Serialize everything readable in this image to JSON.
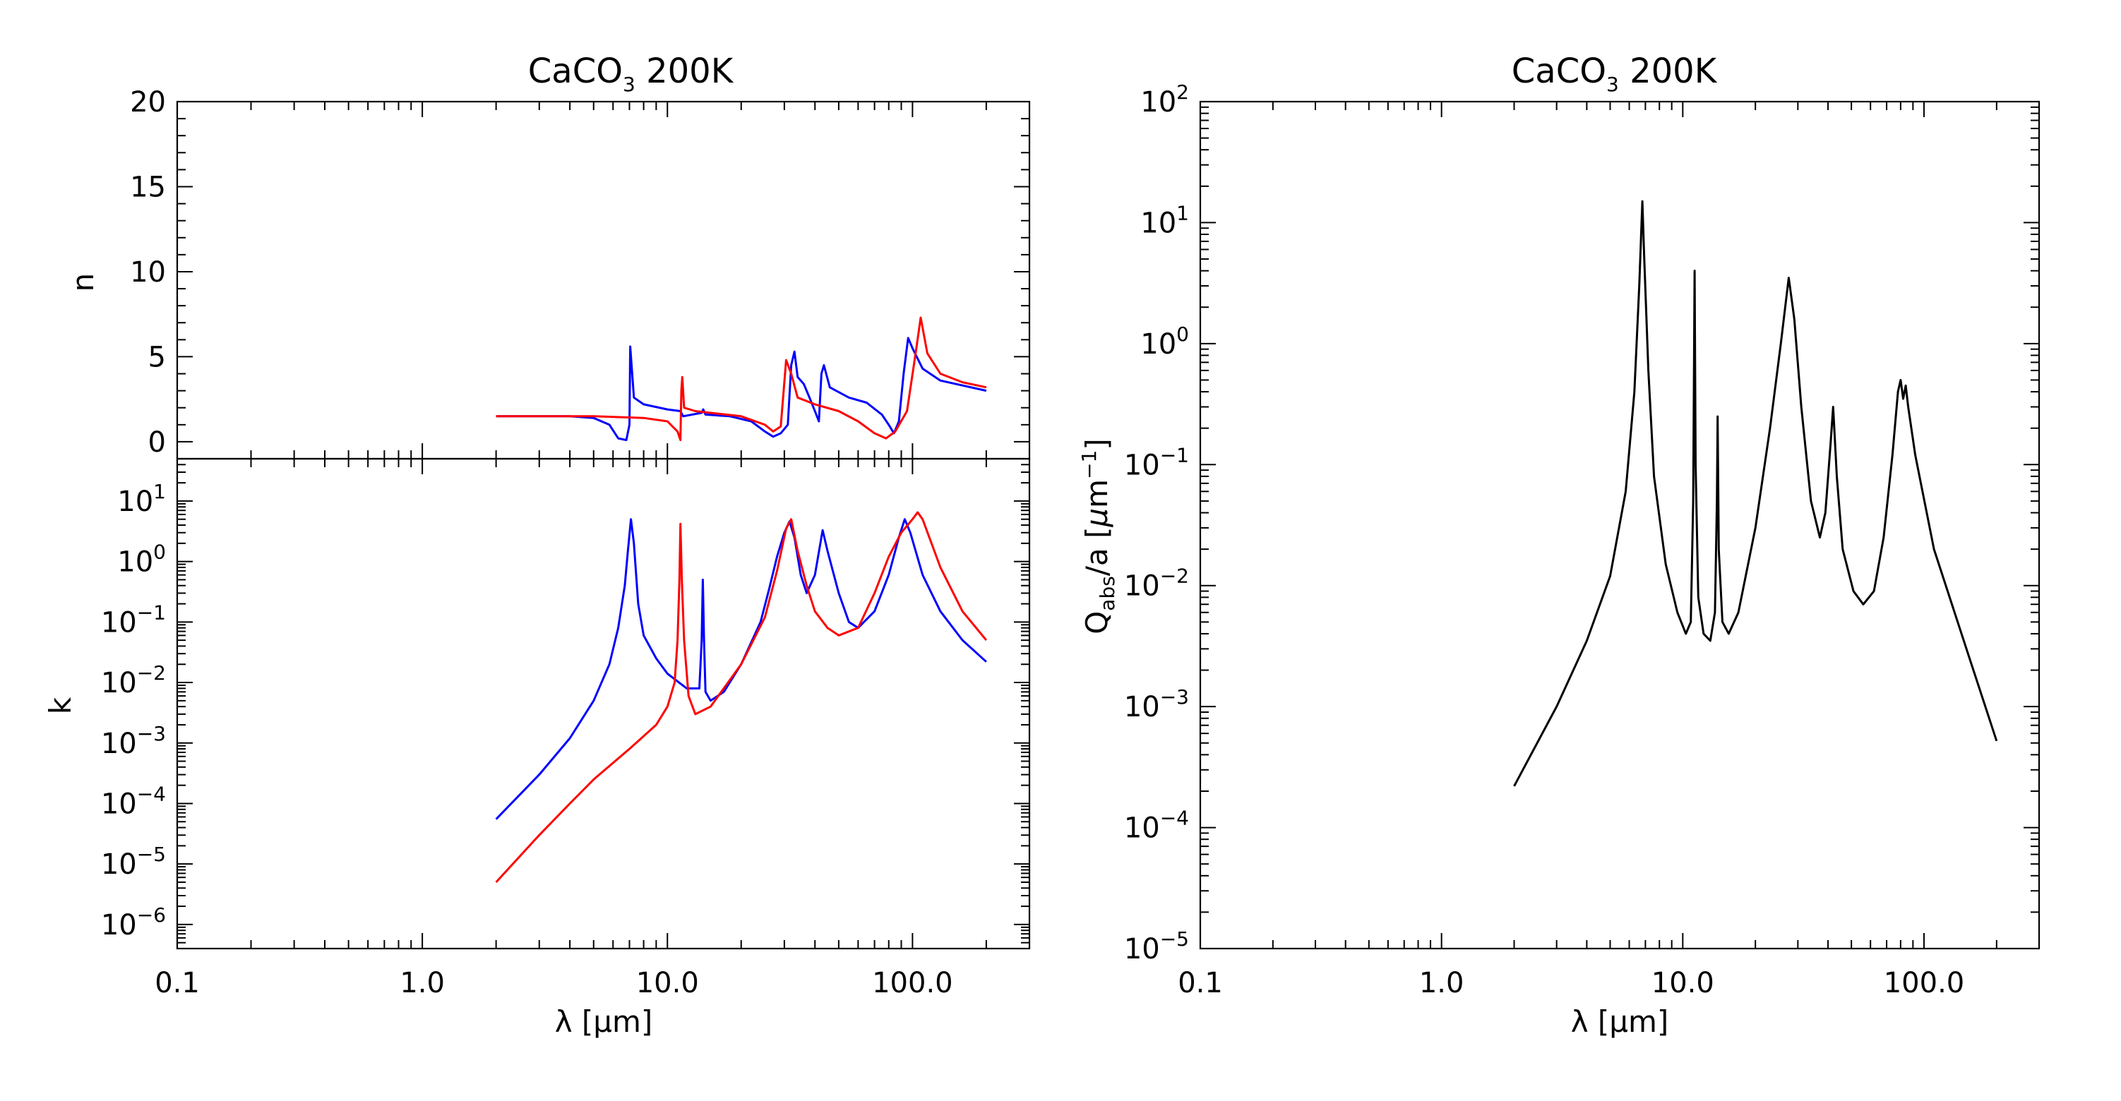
{
  "chart_data": [
    {
      "id": "n-panel",
      "type": "line",
      "title": "CaCO3 200K",
      "title_base": "CaCO",
      "title_sub": "3",
      "title_rest": " 200K",
      "xlabel": "λ [μm]",
      "ylabel": "n",
      "x_scale": "log",
      "y_scale": "linear",
      "xlim": [
        0.1,
        300
      ],
      "ylim": [
        -1,
        20
      ],
      "x_ticklabels": [],
      "y_ticklabels": [
        "0",
        "5",
        "10",
        "15",
        "20"
      ],
      "y_tickvalues": [
        0,
        5,
        10,
        15,
        20
      ],
      "series": [
        {
          "color": "#0000ff",
          "points": [
            [
              2,
              1.5
            ],
            [
              4,
              1.5
            ],
            [
              5,
              1.4
            ],
            [
              5.8,
              1.0
            ],
            [
              6.3,
              0.2
            ],
            [
              6.8,
              0.1
            ],
            [
              7.0,
              1.0
            ],
            [
              7.05,
              5.6
            ],
            [
              7.3,
              2.6
            ],
            [
              8,
              2.2
            ],
            [
              10,
              1.9
            ],
            [
              11.3,
              1.8
            ],
            [
              11.6,
              1.5
            ],
            [
              13.8,
              1.7
            ],
            [
              14,
              1.9
            ],
            [
              14.3,
              1.6
            ],
            [
              18,
              1.5
            ],
            [
              22,
              1.2
            ],
            [
              25,
              0.6
            ],
            [
              27,
              0.3
            ],
            [
              29,
              0.5
            ],
            [
              31,
              1.0
            ],
            [
              32,
              4.5
            ],
            [
              33,
              5.3
            ],
            [
              34,
              3.8
            ],
            [
              36,
              3.4
            ],
            [
              38,
              2.6
            ],
            [
              40,
              1.8
            ],
            [
              41.5,
              1.2
            ],
            [
              42.5,
              4.0
            ],
            [
              43.5,
              4.5
            ],
            [
              46,
              3.2
            ],
            [
              55,
              2.6
            ],
            [
              65,
              2.3
            ],
            [
              75,
              1.6
            ],
            [
              80,
              1.0
            ],
            [
              84,
              0.5
            ],
            [
              88,
              1.2
            ],
            [
              92,
              4.0
            ],
            [
              96,
              6.1
            ],
            [
              100,
              5.5
            ],
            [
              110,
              4.3
            ],
            [
              130,
              3.6
            ],
            [
              200,
              3.0
            ]
          ]
        },
        {
          "color": "#ff0000",
          "points": [
            [
              2,
              1.5
            ],
            [
              5,
              1.5
            ],
            [
              8,
              1.4
            ],
            [
              10,
              1.2
            ],
            [
              11,
              0.6
            ],
            [
              11.3,
              0.1
            ],
            [
              11.4,
              3.0
            ],
            [
              11.5,
              3.8
            ],
            [
              11.7,
              2.0
            ],
            [
              13,
              1.8
            ],
            [
              20,
              1.5
            ],
            [
              25,
              1.0
            ],
            [
              27,
              0.6
            ],
            [
              29,
              0.9
            ],
            [
              30.5,
              4.8
            ],
            [
              32,
              4.0
            ],
            [
              34,
              2.6
            ],
            [
              40,
              2.2
            ],
            [
              50,
              1.8
            ],
            [
              60,
              1.2
            ],
            [
              70,
              0.5
            ],
            [
              78,
              0.2
            ],
            [
              85,
              0.6
            ],
            [
              95,
              1.8
            ],
            [
              103,
              5.2
            ],
            [
              108,
              7.3
            ],
            [
              115,
              5.2
            ],
            [
              130,
              4.0
            ],
            [
              160,
              3.5
            ],
            [
              200,
              3.2
            ]
          ]
        }
      ]
    },
    {
      "id": "k-panel",
      "type": "line",
      "title": "",
      "xlabel": "λ [μm]",
      "ylabel": "k",
      "x_scale": "log",
      "y_scale": "log",
      "xlim": [
        0.1,
        300
      ],
      "ylim": [
        4e-07,
        50
      ],
      "x_ticklabels": [
        "0.1",
        "1.0",
        "10.0",
        "100.0"
      ],
      "x_tickvalues": [
        0.1,
        1,
        10,
        100
      ],
      "y_tick_exponents": [
        -6,
        -5,
        -4,
        -3,
        -2,
        -1,
        0,
        1
      ],
      "series": [
        {
          "color": "#0000ff",
          "points": [
            [
              2,
              5.5e-05
            ],
            [
              3,
              0.0003
            ],
            [
              4,
              0.0012
            ],
            [
              5,
              0.005
            ],
            [
              5.8,
              0.02
            ],
            [
              6.3,
              0.08
            ],
            [
              6.7,
              0.4
            ],
            [
              6.9,
              1.5
            ],
            [
              7.1,
              5
            ],
            [
              7.3,
              2
            ],
            [
              7.6,
              0.2
            ],
            [
              8,
              0.06
            ],
            [
              9,
              0.025
            ],
            [
              10,
              0.014
            ],
            [
              12,
              0.008
            ],
            [
              13.5,
              0.008
            ],
            [
              13.8,
              0.05
            ],
            [
              13.95,
              0.5
            ],
            [
              14.1,
              0.05
            ],
            [
              14.3,
              0.007
            ],
            [
              15,
              0.005
            ],
            [
              17,
              0.007
            ],
            [
              20,
              0.02
            ],
            [
              24,
              0.1
            ],
            [
              26,
              0.35
            ],
            [
              28,
              1.2
            ],
            [
              30,
              3
            ],
            [
              31.5,
              4.6
            ],
            [
              33,
              2.5
            ],
            [
              35,
              0.6
            ],
            [
              37,
              0.3
            ],
            [
              40,
              0.6
            ],
            [
              43,
              3.3
            ],
            [
              45,
              1.5
            ],
            [
              50,
              0.3
            ],
            [
              55,
              0.1
            ],
            [
              60,
              0.08
            ],
            [
              70,
              0.15
            ],
            [
              80,
              0.6
            ],
            [
              88,
              2.5
            ],
            [
              93,
              5
            ],
            [
              98,
              3
            ],
            [
              110,
              0.6
            ],
            [
              130,
              0.15
            ],
            [
              160,
              0.05
            ],
            [
              200,
              0.022
            ]
          ]
        },
        {
          "color": "#ff0000",
          "points": [
            [
              2,
              5e-06
            ],
            [
              3,
              3e-05
            ],
            [
              4,
              0.0001
            ],
            [
              5,
              0.00025
            ],
            [
              7,
              0.0008
            ],
            [
              9,
              0.002
            ],
            [
              10,
              0.004
            ],
            [
              10.7,
              0.01
            ],
            [
              11,
              0.05
            ],
            [
              11.2,
              0.5
            ],
            [
              11.3,
              4.2
            ],
            [
              11.45,
              0.5
            ],
            [
              11.7,
              0.05
            ],
            [
              12.2,
              0.006
            ],
            [
              13,
              0.003
            ],
            [
              15,
              0.004
            ],
            [
              20,
              0.02
            ],
            [
              25,
              0.12
            ],
            [
              28,
              0.7
            ],
            [
              30.5,
              3.5
            ],
            [
              32,
              5
            ],
            [
              34,
              1.5
            ],
            [
              37,
              0.4
            ],
            [
              40,
              0.15
            ],
            [
              45,
              0.08
            ],
            [
              50,
              0.06
            ],
            [
              60,
              0.08
            ],
            [
              70,
              0.3
            ],
            [
              80,
              1.2
            ],
            [
              90,
              3
            ],
            [
              100,
              5
            ],
            [
              105,
              6.5
            ],
            [
              110,
              5
            ],
            [
              130,
              0.8
            ],
            [
              160,
              0.15
            ],
            [
              200,
              0.05
            ]
          ]
        }
      ]
    },
    {
      "id": "q-panel",
      "type": "line",
      "title": "CaCO3 200K",
      "title_base": "CaCO",
      "title_sub": "3",
      "title_rest": " 200K",
      "xlabel": "λ [μm]",
      "ylabel": "Qabs/a [μm-1]",
      "ylabel_base": "Q",
      "ylabel_sub": "abs",
      "ylabel_mid": "/a [",
      "ylabel_mu": "μ",
      "ylabel_unit": "m",
      "ylabel_sup": "−1",
      "ylabel_end": "]",
      "x_scale": "log",
      "y_scale": "log",
      "xlim": [
        0.1,
        300
      ],
      "ylim": [
        1e-05,
        100
      ],
      "x_ticklabels": [
        "0.1",
        "1.0",
        "10.0",
        "100.0"
      ],
      "x_tickvalues": [
        0.1,
        1,
        10,
        100
      ],
      "y_tick_exponents": [
        -5,
        -4,
        -3,
        -2,
        -1,
        0,
        1,
        2
      ],
      "series": [
        {
          "color": "#000000",
          "points": [
            [
              2,
              0.00022
            ],
            [
              3,
              0.001
            ],
            [
              4,
              0.0035
            ],
            [
              5,
              0.012
            ],
            [
              5.8,
              0.06
            ],
            [
              6.3,
              0.4
            ],
            [
              6.6,
              3
            ],
            [
              6.8,
              15
            ],
            [
              6.9,
              6
            ],
            [
              7.2,
              0.6
            ],
            [
              7.6,
              0.08
            ],
            [
              8.5,
              0.015
            ],
            [
              9.5,
              0.006
            ],
            [
              10.3,
              0.004
            ],
            [
              10.8,
              0.005
            ],
            [
              11.05,
              0.05
            ],
            [
              11.2,
              4
            ],
            [
              11.3,
              0.1
            ],
            [
              11.6,
              0.008
            ],
            [
              12.2,
              0.004
            ],
            [
              13,
              0.0035
            ],
            [
              13.6,
              0.006
            ],
            [
              13.85,
              0.05
            ],
            [
              13.95,
              0.25
            ],
            [
              14.1,
              0.02
            ],
            [
              14.6,
              0.005
            ],
            [
              15.5,
              0.004
            ],
            [
              17,
              0.006
            ],
            [
              20,
              0.03
            ],
            [
              23,
              0.2
            ],
            [
              25.5,
              1
            ],
            [
              27.5,
              3.5
            ],
            [
              29,
              1.6
            ],
            [
              31,
              0.3
            ],
            [
              34,
              0.05
            ],
            [
              37,
              0.025
            ],
            [
              39,
              0.04
            ],
            [
              41,
              0.15
            ],
            [
              42,
              0.3
            ],
            [
              43.5,
              0.08
            ],
            [
              46,
              0.02
            ],
            [
              51,
              0.009
            ],
            [
              56,
              0.007
            ],
            [
              62,
              0.009
            ],
            [
              68,
              0.025
            ],
            [
              74,
              0.12
            ],
            [
              78,
              0.4
            ],
            [
              80,
              0.5
            ],
            [
              82,
              0.35
            ],
            [
              84,
              0.45
            ],
            [
              86,
              0.3
            ],
            [
              92,
              0.12
            ],
            [
              110,
              0.02
            ],
            [
              150,
              0.003
            ],
            [
              200,
              0.00052
            ]
          ]
        }
      ]
    }
  ]
}
